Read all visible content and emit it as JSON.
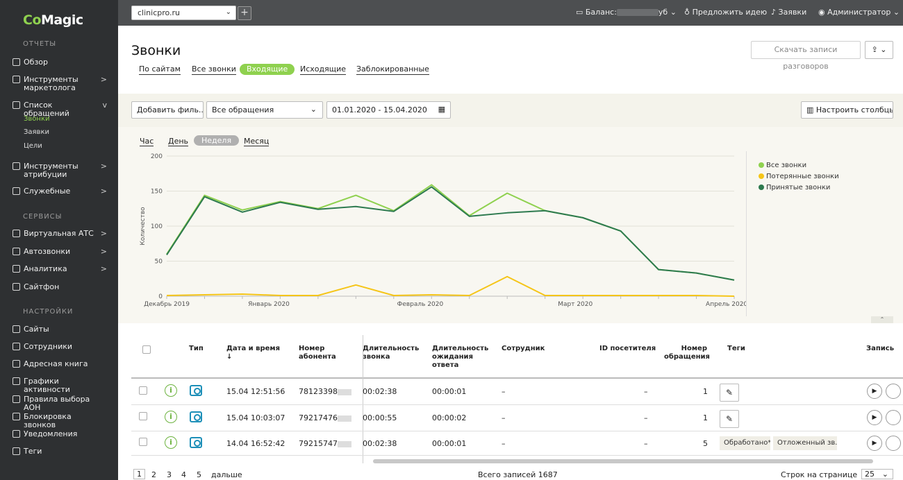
{
  "brand": {
    "logo_co": "Co",
    "logo_magic": "Magic"
  },
  "sidebar": {
    "sections": {
      "reports": "ОТЧЕТЫ",
      "services": "СЕРВИСЫ",
      "settings": "НАСТРОЙКИ"
    },
    "items": {
      "overview": "Обзор",
      "marketing": "Инструменты маркетолога",
      "requests_list": "Список обращений",
      "calls": "Звонки",
      "orders": "Заявки",
      "goals": "Цели",
      "attribution": "Инструменты атрибуции",
      "service": "Служебные",
      "vats": "Виртуальная АТС",
      "autocalls": "Автозвонки",
      "analytics": "Аналитика",
      "sitephone": "Сайтфон",
      "sites": "Сайты",
      "employees": "Сотрудники",
      "addressbook": "Адресная книга",
      "activity": "Графики активности",
      "aon": "Правила выбора АОН",
      "block": "Блокировка звонков",
      "notifications": "Уведомления",
      "tags": "Теги"
    },
    "arrow_right": ">",
    "arrow_down": "v"
  },
  "topbar": {
    "site": "clinicpro.ru",
    "balance_label": "Баланс:",
    "balance_suffix": "уб",
    "suggest": "Предложить идею",
    "requests": "Заявки",
    "admin": "Администратор",
    "plus": "+"
  },
  "header": {
    "title": "Звонки",
    "download_label": "Скачать записи разговоров"
  },
  "tabs": [
    "По сайтам",
    "Все звонки",
    "Входящие",
    "Исходящие",
    "Заблокированные"
  ],
  "filters": {
    "add_filter": "Добавить филь...",
    "all_requests": "Все обращения",
    "date_range": "01.01.2020 - 15.04.2020",
    "configure_columns": "Настроить столбцы"
  },
  "periods": [
    "Час",
    "День",
    "Неделя",
    "Месяц"
  ],
  "colors": {
    "all": "#8fd14f",
    "lost": "#f5c518",
    "accepted": "#2d7a4f"
  },
  "chart_data": {
    "type": "line",
    "ylabel": "Количество",
    "ylim": [
      0,
      200
    ],
    "yticks": [
      0,
      50,
      100,
      150,
      200
    ],
    "xticks": [
      {
        "x": 0,
        "label": "Декабрь 2019"
      },
      {
        "x": 2.7,
        "label": "Январь 2020"
      },
      {
        "x": 6.7,
        "label": "Февраль 2020"
      },
      {
        "x": 10.8,
        "label": "Март 2020"
      },
      {
        "x": 14.8,
        "label": "Апрель 2020"
      }
    ],
    "x": [
      0,
      1,
      2,
      3,
      4,
      5,
      6,
      7,
      8,
      9,
      10,
      11,
      12,
      13,
      14,
      15
    ],
    "series": [
      {
        "name": "Все звонки",
        "color": "#8fd14f",
        "values": [
          60,
          144,
          123,
          135,
          125,
          144,
          122,
          159,
          115,
          147,
          122,
          112,
          93,
          38,
          33,
          23
        ]
      },
      {
        "name": "Потерянные звонки",
        "color": "#f5c518",
        "values": [
          1,
          2,
          3,
          1,
          1,
          16,
          1,
          2,
          1,
          28,
          1,
          1,
          1,
          1,
          1,
          0
        ]
      },
      {
        "name": "Принятые звонки",
        "color": "#2d7a4f",
        "values": [
          59,
          142,
          120,
          134,
          124,
          128,
          121,
          156,
          114,
          119,
          122,
          112,
          93,
          38,
          33,
          23
        ]
      }
    ]
  },
  "table": {
    "headers": {
      "type": "Тип",
      "datetime": "Дата и время",
      "number": "Номер абонента",
      "duration": "Длительность звонка",
      "wait": "Длительность ожидания ответа",
      "employee": "Сотрудник",
      "visitor": "ID посетителя",
      "req_no": "Номер обращения",
      "tags": "Теги",
      "record": "Запись"
    },
    "sort_arrow": "↓",
    "rows": [
      {
        "datetime": "15.04 12:51:56",
        "number": "78123398",
        "duration": "00:02:38",
        "wait": "00:00:01",
        "employee": "–",
        "visitor": "–",
        "req_no": "1"
      },
      {
        "datetime": "15.04 10:03:07",
        "number": "79217476",
        "duration": "00:00:55",
        "wait": "00:00:02",
        "employee": "–",
        "visitor": "–",
        "req_no": "1"
      },
      {
        "datetime": "14.04 16:52:42",
        "number": "79215747",
        "duration": "00:02:38",
        "wait": "00:00:01",
        "employee": "–",
        "visitor": "–",
        "req_no": "5",
        "tag1": "Обработано*",
        "tag2": "Отложенный зв..."
      }
    ],
    "info_glyph": "i",
    "edit_glyph": "✎",
    "play_glyph": "▶"
  },
  "pager": {
    "pages": [
      "1",
      "2",
      "3",
      "4",
      "5"
    ],
    "next": "дальше",
    "total": "Всего записей 1687",
    "per_page_label": "Строк на странице",
    "per_page": "25"
  }
}
